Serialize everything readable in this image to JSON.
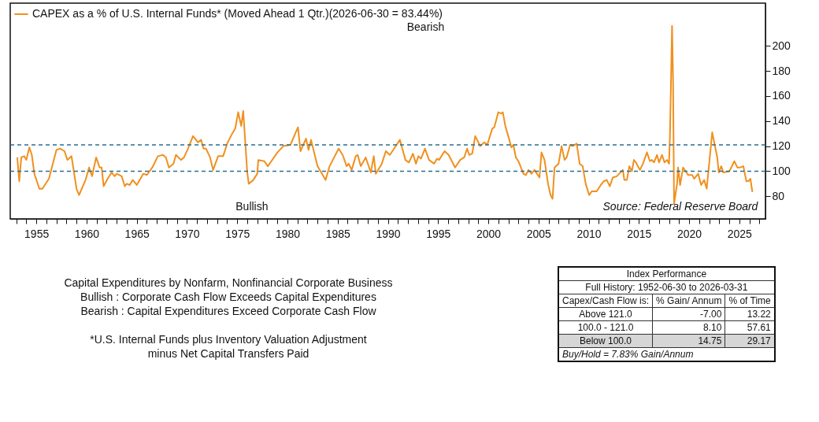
{
  "chart_data": {
    "type": "line",
    "x": [
      1953.1,
      1953.3,
      1953.5,
      1953.8,
      1954.0,
      1954.3,
      1954.55,
      1954.8,
      1955.3,
      1955.6,
      1956.25,
      1957.0,
      1957.4,
      1957.8,
      1958.1,
      1958.5,
      1959.0,
      1959.25,
      1959.9,
      1960.25,
      1960.55,
      1960.95,
      1961.3,
      1961.5,
      1961.7,
      1962.1,
      1962.5,
      1962.8,
      1963.0,
      1963.5,
      1963.8,
      1964.0,
      1964.3,
      1964.6,
      1965.0,
      1965.65,
      1966.0,
      1966.55,
      1967.1,
      1967.6,
      1967.9,
      1968.2,
      1968.65,
      1968.9,
      1969.4,
      1969.7,
      1970.1,
      1970.6,
      1971.1,
      1971.4,
      1971.65,
      1971.9,
      1972.3,
      1972.6,
      1973.1,
      1973.6,
      1974.0,
      1974.5,
      1974.8,
      1975.1,
      1975.4,
      1975.6,
      1976.0,
      1976.15,
      1976.6,
      1977.0,
      1977.1,
      1977.7,
      1978.05,
      1978.4,
      1979.0,
      1979.6,
      1980.3,
      1981.05,
      1981.3,
      1981.85,
      1982.1,
      1982.35,
      1983.0,
      1983.8,
      1984.2,
      1985.1,
      1985.5,
      1985.9,
      1986.1,
      1986.4,
      1986.8,
      1987.0,
      1987.3,
      1987.8,
      1988.3,
      1988.6,
      1988.8,
      1989.4,
      1989.8,
      1990.2,
      1990.7,
      1991.2,
      1991.75,
      1992.1,
      1992.5,
      1992.8,
      1993.05,
      1993.3,
      1993.7,
      1994.1,
      1994.6,
      1994.9,
      1995.1,
      1995.65,
      1996.05,
      1996.7,
      1997.2,
      1997.6,
      1997.9,
      1998.1,
      1998.4,
      1998.7,
      1999.2,
      1999.6,
      1999.9,
      2000.4,
      2000.6,
      2001.0,
      2001.3,
      2001.45,
      2001.7,
      2002.1,
      2002.3,
      2002.5,
      2002.75,
      2003.0,
      2003.5,
      2003.75,
      2004.0,
      2004.3,
      2004.6,
      2005.1,
      2005.3,
      2005.6,
      2005.95,
      2006.2,
      2006.4,
      2006.6,
      2007.0,
      2007.3,
      2007.6,
      2007.8,
      2008.15,
      2008.4,
      2008.8,
      2009.1,
      2009.4,
      2009.7,
      2010.05,
      2010.3,
      2010.8,
      2011.2,
      2011.5,
      2011.8,
      2012.1,
      2012.4,
      2012.8,
      2013.4,
      2013.55,
      2013.8,
      2014.05,
      2014.3,
      2014.5,
      2014.7,
      2015.1,
      2015.4,
      2015.8,
      2016.1,
      2016.3,
      2016.5,
      2016.8,
      2017.0,
      2017.3,
      2017.55,
      2017.8,
      2018.0,
      2018.1,
      2018.3,
      2018.4,
      2018.5,
      2018.8,
      2018.9,
      2019.1,
      2019.4,
      2019.9,
      2020.3,
      2020.5,
      2020.9,
      2021.2,
      2021.5,
      2021.75,
      2022.3,
      2022.8,
      2022.95,
      2023.2,
      2023.4,
      2024.0,
      2024.2,
      2024.5,
      2024.8,
      2025.1,
      2025.4,
      2025.7,
      2025.9,
      2026.1,
      2026.3
    ],
    "series": [
      {
        "name": "CAPEX as a % of U.S. Internal Funds* (Moved Ahead 1 Qtr.)(2026-06-30 = 83.44%)",
        "color": "#f0901e",
        "values": [
          111,
          92,
          111,
          112,
          109,
          119,
          113,
          98,
          86,
          86,
          94,
          117,
          118,
          116,
          109,
          112,
          86,
          81,
          93,
          103,
          96,
          111,
          103,
          103,
          88,
          94,
          99,
          96,
          98,
          96,
          88,
          90,
          89,
          93,
          89,
          98,
          97,
          103,
          112,
          113,
          111,
          103,
          106,
          113,
          109,
          111,
          118,
          128,
          123,
          125,
          118,
          118,
          111,
          101,
          112,
          112,
          122,
          130,
          134,
          147,
          136,
          148,
          99,
          90,
          93,
          98,
          109,
          108,
          104,
          108,
          115,
          120,
          121,
          135,
          116,
          126,
          117,
          125,
          104,
          93,
          104,
          118,
          113,
          104,
          106,
          101,
          112,
          113,
          104,
          111,
          99,
          112,
          98,
          106,
          116,
          113,
          119,
          125,
          109,
          107,
          114,
          106,
          112,
          110,
          118,
          109,
          106,
          110,
          109,
          116,
          113,
          103,
          109,
          111,
          118,
          113,
          114,
          128,
          120,
          123,
          121,
          134,
          135,
          147,
          146,
          147,
          136,
          125,
          119,
          121,
          111,
          108,
          98,
          97,
          101,
          98,
          101,
          95,
          115,
          109,
          90,
          81,
          78,
          103,
          106,
          120,
          109,
          111,
          121,
          120,
          122,
          106,
          104,
          90,
          81,
          84,
          84,
          89,
          92,
          93,
          88,
          95,
          96,
          101,
          93,
          93,
          104,
          100,
          109,
          107,
          101,
          106,
          115,
          108,
          109,
          107,
          113,
          107,
          113,
          107,
          109,
          106,
          131,
          216,
          173,
          74,
          90,
          103,
          89,
          103,
          97,
          97,
          94,
          98,
          89,
          93,
          86,
          131,
          111,
          99,
          104,
          99,
          100,
          103,
          108,
          103,
          103,
          104,
          92,
          92,
          94,
          83.44
        ]
      }
    ],
    "xlim": [
      1952.4,
      2027.6
    ],
    "xticks": [
      {
        "value": 1953,
        "label": null
      },
      {
        "value": 1954,
        "label": null
      },
      1955,
      {
        "value": 1956,
        "label": null
      },
      {
        "value": 1957,
        "label": null
      },
      {
        "value": 1958,
        "label": null
      },
      {
        "value": 1959,
        "label": null
      },
      1960,
      {
        "value": 1961,
        "label": null
      },
      {
        "value": 1962,
        "label": null
      },
      {
        "value": 1963,
        "label": null
      },
      {
        "value": 1964,
        "label": null
      },
      1965,
      {
        "value": 1966,
        "label": null
      },
      {
        "value": 1967,
        "label": null
      },
      {
        "value": 1968,
        "label": null
      },
      {
        "value": 1969,
        "label": null
      },
      1970,
      {
        "value": 1971,
        "label": null
      },
      {
        "value": 1972,
        "label": null
      },
      {
        "value": 1973,
        "label": null
      },
      {
        "value": 1974,
        "label": null
      },
      1975,
      {
        "value": 1976,
        "label": null
      },
      {
        "value": 1977,
        "label": null
      },
      {
        "value": 1978,
        "label": null
      },
      {
        "value": 1979,
        "label": null
      },
      1980,
      {
        "value": 1981,
        "label": null
      },
      {
        "value": 1982,
        "label": null
      },
      {
        "value": 1983,
        "label": null
      },
      {
        "value": 1984,
        "label": null
      },
      1985,
      {
        "value": 1986,
        "label": null
      },
      {
        "value": 1987,
        "label": null
      },
      {
        "value": 1988,
        "label": null
      },
      {
        "value": 1989,
        "label": null
      },
      1990,
      {
        "value": 1991,
        "label": null
      },
      {
        "value": 1992,
        "label": null
      },
      {
        "value": 1993,
        "label": null
      },
      {
        "value": 1994,
        "label": null
      },
      1995,
      {
        "value": 1996,
        "label": null
      },
      {
        "value": 1997,
        "label": null
      },
      {
        "value": 1998,
        "label": null
      },
      {
        "value": 1999,
        "label": null
      },
      2000,
      {
        "value": 2001,
        "label": null
      },
      {
        "value": 2002,
        "label": null
      },
      {
        "value": 2003,
        "label": null
      },
      {
        "value": 2004,
        "label": null
      },
      2005,
      {
        "value": 2006,
        "label": null
      },
      {
        "value": 2007,
        "label": null
      },
      {
        "value": 2008,
        "label": null
      },
      {
        "value": 2009,
        "label": null
      },
      2010,
      {
        "value": 2011,
        "label": null
      },
      {
        "value": 2012,
        "label": null
      },
      {
        "value": 2013,
        "label": null
      },
      {
        "value": 2014,
        "label": null
      },
      2015,
      {
        "value": 2016,
        "label": null
      },
      {
        "value": 2017,
        "label": null
      },
      {
        "value": 2018,
        "label": null
      },
      {
        "value": 2019,
        "label": null
      },
      2020,
      {
        "value": 2021,
        "label": null
      },
      {
        "value": 2022,
        "label": null
      },
      {
        "value": 2023,
        "label": null
      },
      {
        "value": 2024,
        "label": null
      },
      2025,
      {
        "value": 2026,
        "label": null
      },
      {
        "value": 2027,
        "label": null
      }
    ],
    "ylim": [
      62,
      234
    ],
    "yticks": [
      80,
      100,
      120,
      140,
      160,
      180,
      200
    ],
    "ref_lines": [
      {
        "axis": "y",
        "value": 100,
        "color": "#2a6f8f",
        "line_style": "dashed"
      },
      {
        "axis": "y",
        "value": 121,
        "color": "#2a6f8f",
        "line_style": "dashed"
      }
    ],
    "legend": "top left",
    "annotations": [
      "Bearish",
      "Bullish",
      "Source:  Federal Reserve Board",
      "Capital Expenditures by Nonfarm, Nonfinancial Corporate Business",
      "Bullish : Corporate Cash Flow Exceeds Capital Expenditures",
      "Bearish : Capital Expenditures Exceed Corporate Cash Flow",
      "*U.S. Internal Funds plus Inventory Valuation Adjustment",
      "minus Net Capital Transfers Paid",
      "Index Performance",
      "Full History:  1952-06-30 to 2026-03-31",
      "Capex/Cash Flow is:",
      "% Gain/ Annum",
      "% of Time",
      "Above 121.0",
      "-7.00",
      "13.22",
      "100.0 - 121.0",
      "8.10",
      "57.61",
      "Below 100.0",
      "14.75",
      "29.17",
      "Buy/Hold = 7.83% Gain/Annum"
    ]
  }
}
